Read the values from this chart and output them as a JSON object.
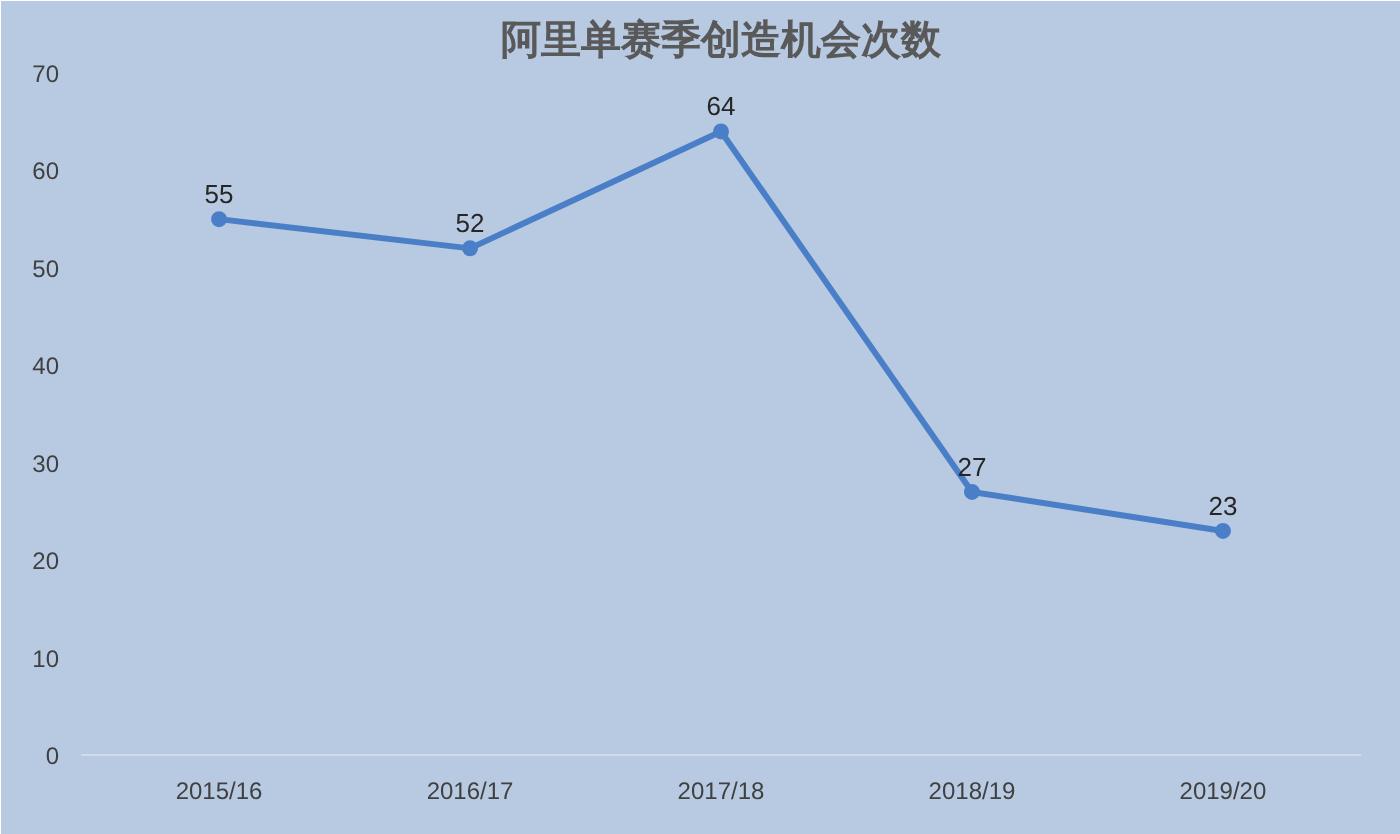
{
  "chart_data": {
    "type": "line",
    "title": "阿里单赛季创造机会次数",
    "categories": [
      "2015/16",
      "2016/17",
      "2017/18",
      "2018/19",
      "2019/20"
    ],
    "series": [
      {
        "color": "#4a7fc8",
        "values": [
          55,
          52,
          64,
          27,
          23
        ]
      }
    ],
    "ylim": [
      0,
      70
    ],
    "yticks": [
      0,
      10,
      20,
      30,
      40,
      50,
      60,
      70
    ],
    "grid": false,
    "data_labels": true,
    "marker": "circle",
    "line_style": "solid"
  }
}
